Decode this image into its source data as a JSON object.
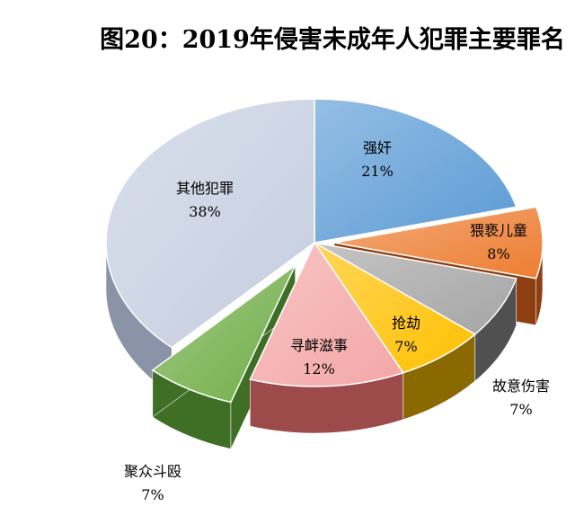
{
  "chart_data": {
    "type": "pie",
    "title": "图20：2019年侵害未成年人犯罪主要罪名",
    "slices": [
      {
        "label": "强奸",
        "value": 21,
        "pct_label": "21%",
        "color": "#5B9BD5",
        "side": "#3E6FA3",
        "explode": 0
      },
      {
        "label": "猥亵儿童",
        "value": 8,
        "pct_label": "8%",
        "color": "#ED7D31",
        "side": "#8E3F12",
        "explode": 22
      },
      {
        "label": "故意伤害",
        "value": 7,
        "pct_label": "7%",
        "color": "#A5A5A5",
        "side": "#505050",
        "explode": 0
      },
      {
        "label": "抢劫",
        "value": 7,
        "pct_label": "7%",
        "color": "#FFC000",
        "side": "#8A6A00",
        "explode": 0
      },
      {
        "label": "寻衅滋事",
        "value": 12,
        "pct_label": "12%",
        "color": "#F4A6A6",
        "side": "#9C4A4A",
        "explode": 0
      },
      {
        "label": "聚众斗殴",
        "value": 7,
        "pct_label": "7%",
        "color": "#70AD47",
        "side": "#3F6E25",
        "explode": 42
      },
      {
        "label": "其他犯罪",
        "value": 38,
        "pct_label": "38%",
        "color": "#C5CEE0",
        "side": "#8A93A8",
        "explode": 0
      }
    ]
  }
}
